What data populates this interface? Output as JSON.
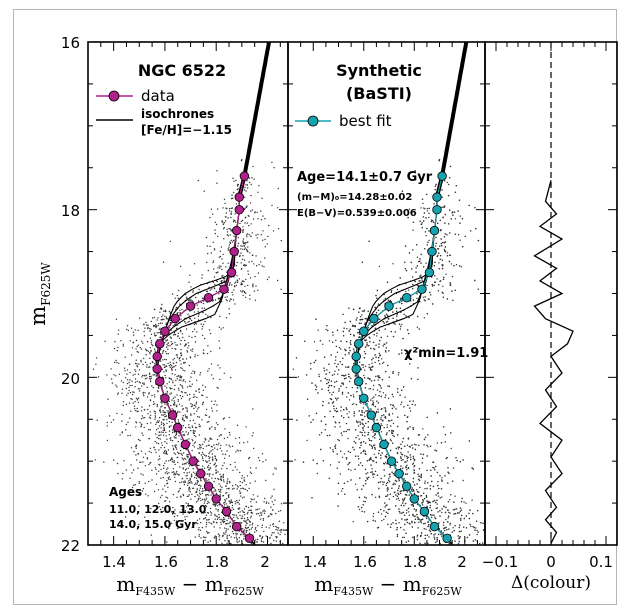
{
  "figure": {
    "y_axis_label": "m",
    "y_axis_sub": "F625W",
    "x_axis_label": "m",
    "x_axis_sub1": "F435W",
    "x_axis_sub2": "F625W",
    "resid_xlabel": "Δ(colour)"
  },
  "panels": {
    "left": {
      "title": "NGC 6522",
      "legend_data": "data",
      "legend_isochrones": "isochrones",
      "legend_feh": "[Fe/H]=−1.15",
      "ages_title": "Ages",
      "ages_line1": "11.0, 12.0, 13.0",
      "ages_line2": "14.0, 15.0 Gyr"
    },
    "middle": {
      "title_line1": "Synthetic",
      "title_line2": "(BaSTI)",
      "legend_bestfit": "best fit",
      "age_text": "Age=14.1±0.7 Gyr",
      "dm_text": "(m−M)₀=14.28±0.02",
      "ebv_text": "E(B−V)=0.539±0.006",
      "chi2_text": "χ²min=1.91"
    }
  },
  "colors": {
    "data_marker": "#b0208a",
    "bestfit_marker": "#15a3b0",
    "stars": "#333333",
    "isochrone": "#000000"
  },
  "chart_data": [
    {
      "type": "scatter",
      "panel": "left",
      "xlabel": "mF435W − mF625W",
      "ylabel": "mF625W",
      "xlim": [
        1.3,
        2.08
      ],
      "ylim": [
        22,
        16
      ],
      "xticks": [
        "1.4",
        "1.6",
        "1.8",
        "2"
      ],
      "yticks": [
        "16",
        "18",
        "20",
        "22"
      ],
      "series": [
        {
          "name": "data",
          "points": [
            [
              1.91,
              17.6
            ],
            [
              1.89,
              17.85
            ],
            [
              1.89,
              18.0
            ],
            [
              1.88,
              18.25
            ],
            [
              1.87,
              18.5
            ],
            [
              1.86,
              18.75
            ],
            [
              1.83,
              18.95
            ],
            [
              1.77,
              19.05
            ],
            [
              1.7,
              19.15
            ],
            [
              1.64,
              19.3
            ],
            [
              1.6,
              19.45
            ],
            [
              1.58,
              19.6
            ],
            [
              1.57,
              19.75
            ],
            [
              1.57,
              19.9
            ],
            [
              1.58,
              20.05
            ],
            [
              1.6,
              20.25
            ],
            [
              1.63,
              20.45
            ],
            [
              1.65,
              20.6
            ],
            [
              1.68,
              20.8
            ],
            [
              1.71,
              21.0
            ],
            [
              1.74,
              21.15
            ],
            [
              1.77,
              21.3
            ],
            [
              1.8,
              21.45
            ],
            [
              1.84,
              21.6
            ],
            [
              1.88,
              21.78
            ],
            [
              1.93,
              21.92
            ]
          ]
        }
      ],
      "isochrones": [
        "11.0",
        "12.0",
        "13.0",
        "14.0",
        "15.0"
      ]
    },
    {
      "type": "scatter",
      "panel": "middle",
      "xlabel": "mF435W − mF625W",
      "ylabel": "mF625W",
      "xlim": [
        1.3,
        2.08
      ],
      "ylim": [
        22,
        16
      ],
      "xticks": [
        "1.4",
        "1.6",
        "1.8",
        "2"
      ],
      "yticks": [
        "16",
        "18",
        "20",
        "22"
      ],
      "series": [
        {
          "name": "best fit",
          "points": [
            [
              1.91,
              17.6
            ],
            [
              1.89,
              17.85
            ],
            [
              1.89,
              18.0
            ],
            [
              1.88,
              18.25
            ],
            [
              1.87,
              18.5
            ],
            [
              1.86,
              18.75
            ],
            [
              1.83,
              18.95
            ],
            [
              1.77,
              19.05
            ],
            [
              1.7,
              19.15
            ],
            [
              1.64,
              19.3
            ],
            [
              1.6,
              19.45
            ],
            [
              1.58,
              19.6
            ],
            [
              1.57,
              19.75
            ],
            [
              1.57,
              19.9
            ],
            [
              1.58,
              20.05
            ],
            [
              1.6,
              20.25
            ],
            [
              1.63,
              20.45
            ],
            [
              1.65,
              20.6
            ],
            [
              1.68,
              20.8
            ],
            [
              1.71,
              21.0
            ],
            [
              1.74,
              21.15
            ],
            [
              1.77,
              21.3
            ],
            [
              1.8,
              21.45
            ],
            [
              1.84,
              21.6
            ],
            [
              1.88,
              21.78
            ],
            [
              1.93,
              21.92
            ]
          ]
        }
      ]
    },
    {
      "type": "line",
      "panel": "right",
      "xlabel": "Δ(colour)",
      "xlim": [
        -0.12,
        0.12
      ],
      "ylim": [
        22,
        16
      ],
      "xticks": [
        "−0.1",
        "0",
        "0.1"
      ],
      "series": [
        {
          "points": [
            [
              0.0,
              17.65
            ],
            [
              -0.01,
              17.9
            ],
            [
              0.01,
              18.05
            ],
            [
              -0.02,
              18.2
            ],
            [
              0.02,
              18.35
            ],
            [
              -0.03,
              18.55
            ],
            [
              0.01,
              18.7
            ],
            [
              -0.02,
              18.85
            ],
            [
              0.02,
              19.0
            ],
            [
              -0.03,
              19.15
            ],
            [
              -0.01,
              19.3
            ],
            [
              0.04,
              19.45
            ],
            [
              0.03,
              19.6
            ],
            [
              0.0,
              19.75
            ],
            [
              0.02,
              19.95
            ],
            [
              -0.01,
              20.15
            ],
            [
              0.01,
              20.35
            ],
            [
              -0.02,
              20.55
            ],
            [
              0.02,
              20.75
            ],
            [
              0.0,
              20.95
            ],
            [
              0.02,
              21.15
            ],
            [
              -0.01,
              21.35
            ],
            [
              0.01,
              21.55
            ],
            [
              -0.01,
              21.7
            ],
            [
              0.01,
              21.85
            ],
            [
              0.0,
              21.98
            ]
          ]
        }
      ]
    }
  ]
}
